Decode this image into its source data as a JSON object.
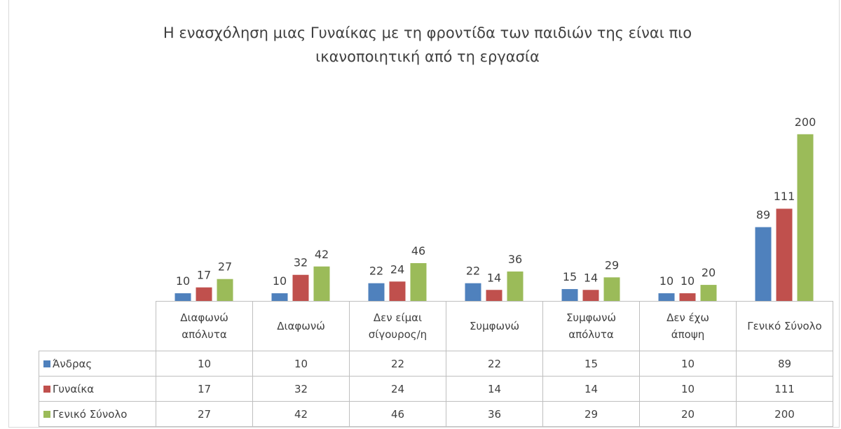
{
  "chart_data": {
    "type": "bar",
    "title": "Η ενασχόληση μιας Γυναίκας με τη φροντίδα των παιδιών της είναι πιο ικανοποιητική από τη εργασία",
    "categories": [
      "Διαφωνώ απόλυτα",
      "Διαφωνώ",
      "Δεν είμαι σίγουρος/η",
      "Συμφωνώ",
      "Συμφωνώ απόλυτα",
      "Δεν έχω άποψη",
      "Γενικό Σύνολο"
    ],
    "series": [
      {
        "name": "Άνδρας",
        "color": "#4f81bd",
        "values": [
          10,
          10,
          22,
          22,
          15,
          10,
          89
        ]
      },
      {
        "name": "Γυναίκα",
        "color": "#c0504d",
        "values": [
          17,
          32,
          24,
          14,
          14,
          10,
          111
        ]
      },
      {
        "name": "Γενικό Σύνολο",
        "color": "#9bbb59",
        "values": [
          27,
          42,
          46,
          36,
          29,
          20,
          200
        ]
      }
    ],
    "ylim": [
      0,
      250
    ]
  }
}
